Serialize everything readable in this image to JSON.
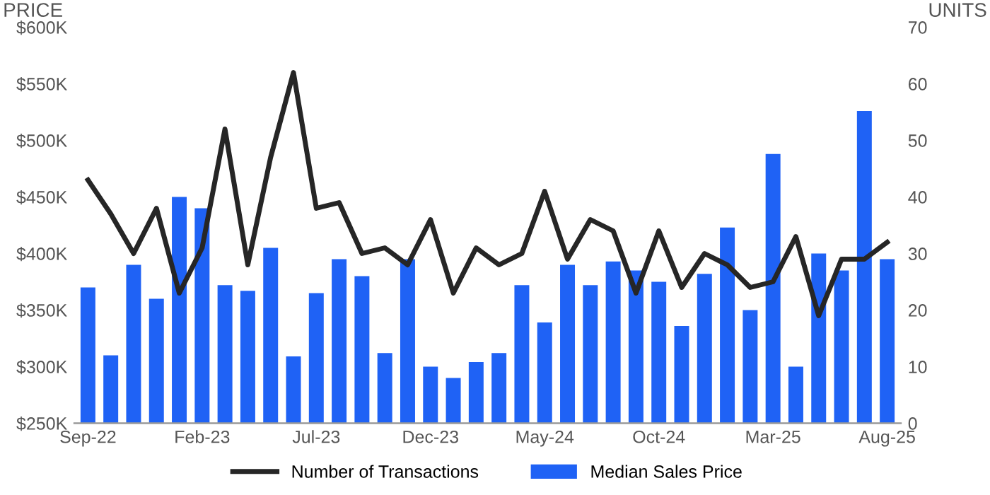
{
  "chart_data": {
    "type": "bar",
    "ylabel": "PRICE",
    "y2label": "UNITS",
    "categories": [
      "Sep-22",
      null,
      null,
      null,
      null,
      "Feb-23",
      null,
      null,
      null,
      null,
      "Jul-23",
      null,
      null,
      null,
      null,
      "Dec-23",
      null,
      null,
      null,
      null,
      "May-24",
      null,
      null,
      null,
      null,
      "Oct-24",
      null,
      null,
      null,
      null,
      "Mar-25",
      null,
      null,
      null,
      null,
      "Aug-25"
    ],
    "series": [
      {
        "name": "Number of Transactions",
        "type": "line",
        "axis": "y2",
        "color": "#262626",
        "values": [
          43,
          37,
          30,
          38,
          23,
          31,
          52,
          28,
          47,
          62,
          38,
          39,
          30,
          31,
          28,
          36,
          23,
          31,
          28,
          30,
          41,
          29,
          36,
          34,
          23,
          34,
          24,
          30,
          28,
          24,
          25,
          33,
          19,
          29,
          29,
          32
        ]
      },
      {
        "name": "Median Sales Price",
        "color": "#1f62f5",
        "values": [
          370000,
          310000,
          390000,
          360000,
          450000,
          440000,
          372000,
          367000,
          405000,
          309000,
          365000,
          395000,
          380000,
          312000,
          395000,
          300000,
          290000,
          304000,
          312000,
          372000,
          339000,
          390000,
          372000,
          393000,
          385000,
          375000,
          336000,
          382000,
          423000,
          350000,
          488000,
          300000,
          400000,
          385000,
          526000,
          395000
        ]
      }
    ],
    "ylim": [
      250000,
      600000
    ],
    "yticks": [
      {
        "value": 250000,
        "label": "$250K"
      },
      {
        "value": 300000,
        "label": "$300K"
      },
      {
        "value": 350000,
        "label": "$350K"
      },
      {
        "value": 400000,
        "label": "$400K"
      },
      {
        "value": 450000,
        "label": "$450K"
      },
      {
        "value": 500000,
        "label": "$500K"
      },
      {
        "value": 550000,
        "label": "$550K"
      },
      {
        "value": 600000,
        "label": "$600K"
      }
    ],
    "y2lim": [
      0,
      70
    ],
    "y2ticks": [
      0,
      10,
      20,
      30,
      40,
      50,
      60,
      70
    ],
    "legend": "bottom",
    "grid": false,
    "line_style": "solid",
    "marker": "none"
  }
}
